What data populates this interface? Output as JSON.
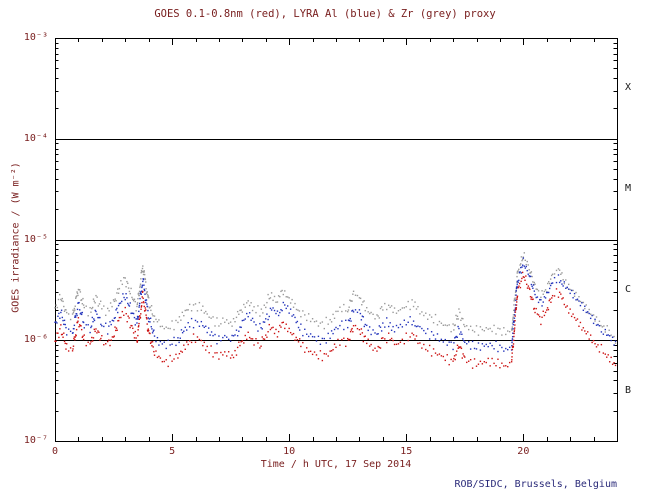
{
  "credit": "ROB/SIDC, Brussels, Belgium",
  "colors": {
    "plot_text": "#7a2020",
    "credit_text": "#2b2b7a",
    "frame": "#000000",
    "background": "#ffffff",
    "class_labels": "#1a1a1a"
  },
  "chart_data": {
    "type": "line",
    "title": "GOES 0.1-0.8nm (red), LYRA Al (blue) & Zr (grey) proxy",
    "xlabel": "Time / h UTC, 17 Sep 2014",
    "ylabel": "GOES irradiance / (W m⁻²)",
    "date": "17 Sep 2014",
    "xlim": [
      0,
      24
    ],
    "ylim_exp": [
      -7,
      -3
    ],
    "y_scale": "log10",
    "grid": "off",
    "legend": "none (series identified in title)",
    "x_major_ticks": [
      0,
      5,
      10,
      15,
      20
    ],
    "x_minor_step": 1,
    "y_ticks": [
      {
        "exp": -3,
        "label": "10⁻³"
      },
      {
        "exp": -4,
        "label": "10⁻⁴"
      },
      {
        "exp": -5,
        "label": "10⁻⁵"
      },
      {
        "exp": -6,
        "label": "10⁻⁶"
      },
      {
        "exp": -7,
        "label": "10⁻⁷"
      }
    ],
    "hlines_exp": [
      -4,
      -5,
      -6
    ],
    "flare_classes": [
      {
        "label": "X",
        "exp": -3.5
      },
      {
        "label": "M",
        "exp": -4.5
      },
      {
        "label": "C",
        "exp": -5.5
      },
      {
        "label": "B",
        "exp": -6.5
      }
    ],
    "unit_scale": 1e-06,
    "unit_note": "series values are in units of 1e-6 W m^-2",
    "x": [
      0,
      0.25,
      0.5,
      0.75,
      1,
      1.25,
      1.5,
      1.75,
      2,
      2.25,
      2.5,
      2.75,
      3,
      3.25,
      3.5,
      3.75,
      4,
      4.25,
      4.5,
      4.75,
      5,
      5.25,
      5.5,
      5.75,
      6,
      6.25,
      6.5,
      6.75,
      7,
      7.25,
      7.5,
      7.75,
      8,
      8.25,
      8.5,
      8.75,
      9,
      9.25,
      9.5,
      9.75,
      10,
      10.25,
      10.5,
      10.75,
      11,
      11.25,
      11.5,
      11.75,
      12,
      12.25,
      12.5,
      12.75,
      13,
      13.25,
      13.5,
      13.75,
      14,
      14.25,
      14.5,
      14.75,
      15,
      15.25,
      15.5,
      15.75,
      16,
      16.25,
      16.5,
      16.75,
      17,
      17.25,
      17.5,
      17.75,
      18,
      18.25,
      18.5,
      18.75,
      19,
      19.25,
      19.5,
      19.75,
      20,
      20.25,
      20.5,
      20.75,
      21,
      21.25,
      21.5,
      21.75,
      22,
      22.25,
      22.5,
      22.75,
      23,
      23.25,
      23.5,
      23.75,
      24
    ],
    "series": [
      {
        "name": "LYRA Zr proxy",
        "color": "#9a9a9a",
        "values_1e6": [
          2.1,
          2.7,
          1.8,
          1.7,
          3.3,
          2.1,
          1.9,
          2.7,
          2.1,
          1.9,
          2.3,
          3.3,
          4.0,
          2.9,
          2.1,
          5.5,
          2.4,
          1.6,
          1.4,
          1.3,
          1.4,
          1.5,
          1.8,
          2.1,
          2.2,
          2.1,
          1.8,
          1.6,
          1.45,
          1.6,
          1.45,
          1.7,
          2.1,
          2.5,
          2.1,
          1.9,
          2.3,
          2.9,
          2.5,
          3.2,
          2.7,
          2.3,
          1.9,
          1.7,
          1.6,
          1.45,
          1.45,
          1.6,
          1.9,
          2.1,
          2.0,
          2.9,
          2.7,
          2.1,
          1.8,
          1.7,
          2.1,
          2.2,
          1.9,
          2.0,
          2.2,
          2.3,
          2.0,
          1.8,
          1.7,
          1.6,
          1.45,
          1.4,
          1.3,
          1.9,
          1.4,
          1.3,
          1.25,
          1.28,
          1.3,
          1.28,
          1.25,
          1.2,
          1.25,
          4.5,
          7.0,
          5.2,
          3.4,
          2.7,
          3.3,
          4.5,
          5.0,
          4.0,
          3.4,
          2.9,
          2.5,
          2.1,
          1.8,
          1.55,
          1.35,
          1.2,
          1.0
        ]
      },
      {
        "name": "LYRA Al proxy",
        "color": "#2233bb",
        "values_1e6": [
          1.45,
          1.9,
          1.25,
          1.2,
          2.3,
          1.45,
          1.3,
          1.9,
          1.45,
          1.3,
          1.6,
          2.3,
          2.8,
          2.0,
          1.45,
          4.0,
          1.7,
          1.1,
          0.95,
          0.9,
          0.95,
          1.0,
          1.25,
          1.45,
          1.5,
          1.45,
          1.25,
          1.1,
          1.0,
          1.1,
          1.0,
          1.15,
          1.45,
          1.75,
          1.45,
          1.3,
          1.6,
          2.0,
          1.75,
          2.2,
          1.9,
          1.6,
          1.3,
          1.15,
          1.1,
          1.0,
          1.0,
          1.1,
          1.3,
          1.45,
          1.4,
          2.0,
          1.9,
          1.45,
          1.25,
          1.15,
          1.45,
          1.5,
          1.3,
          1.4,
          1.5,
          1.6,
          1.4,
          1.25,
          1.15,
          1.1,
          1.0,
          0.95,
          0.9,
          1.3,
          0.95,
          0.9,
          0.85,
          0.88,
          0.9,
          0.88,
          0.85,
          0.8,
          0.85,
          3.8,
          6.0,
          4.4,
          2.9,
          2.3,
          2.8,
          3.8,
          4.2,
          3.4,
          2.9,
          2.5,
          2.1,
          1.8,
          1.5,
          1.3,
          1.15,
          1.0,
          0.85
        ]
      },
      {
        "name": "GOES 0.1-0.8nm",
        "color": "#cc1111",
        "values_1e6": [
          1.0,
          1.3,
          0.85,
          0.8,
          1.6,
          1.0,
          0.9,
          1.3,
          1.0,
          0.9,
          1.1,
          1.6,
          1.9,
          1.4,
          1.0,
          2.8,
          1.2,
          0.75,
          0.65,
          0.6,
          0.65,
          0.7,
          0.85,
          1.0,
          1.05,
          1.0,
          0.85,
          0.75,
          0.7,
          0.75,
          0.7,
          0.8,
          1.0,
          1.2,
          1.0,
          0.9,
          1.1,
          1.4,
          1.2,
          1.5,
          1.3,
          1.1,
          0.9,
          0.8,
          0.75,
          0.7,
          0.7,
          0.75,
          0.9,
          1.0,
          0.95,
          1.4,
          1.3,
          1.0,
          0.85,
          0.8,
          1.0,
          1.05,
          0.9,
          0.95,
          1.05,
          1.1,
          0.95,
          0.85,
          0.8,
          0.75,
          0.7,
          0.65,
          0.6,
          0.9,
          0.65,
          0.6,
          0.58,
          0.6,
          0.62,
          0.6,
          0.58,
          0.55,
          0.6,
          3.0,
          4.5,
          3.2,
          2.0,
          1.6,
          2.0,
          2.8,
          3.0,
          2.4,
          2.0,
          1.7,
          1.4,
          1.2,
          1.0,
          0.85,
          0.75,
          0.65,
          0.55
        ]
      }
    ]
  }
}
